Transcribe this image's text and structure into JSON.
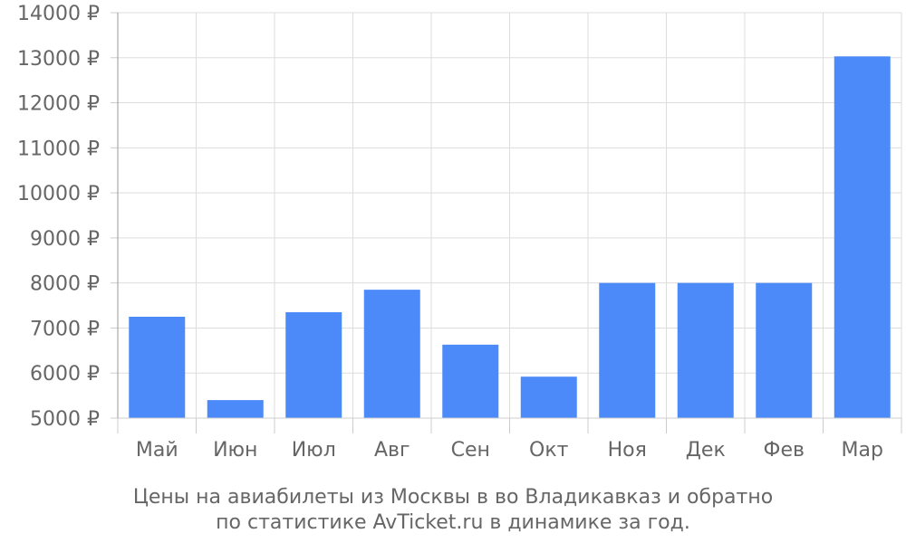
{
  "chart_data": {
    "type": "bar",
    "categories": [
      "Май",
      "Июн",
      "Июл",
      "Авг",
      "Сен",
      "Окт",
      "Ноя",
      "Дек",
      "Фев",
      "Мар"
    ],
    "values": [
      7250,
      5400,
      7350,
      7850,
      6630,
      5920,
      8000,
      8000,
      8000,
      13030
    ],
    "ylim": [
      5000,
      14000
    ],
    "y_ticks": [
      "5000 ₽",
      "6000 ₽",
      "7000 ₽",
      "8000 ₽",
      "9000 ₽",
      "10000 ₽",
      "11000 ₽",
      "12000 ₽",
      "13000 ₽",
      "14000 ₽"
    ],
    "grid": true,
    "bar_color": "#4d8af9",
    "caption_lines": [
      "Цены на авиабилеты из Москвы в во Владикавказ и обратно",
      "по статистике AvTicket.ru в динамике за год."
    ]
  }
}
